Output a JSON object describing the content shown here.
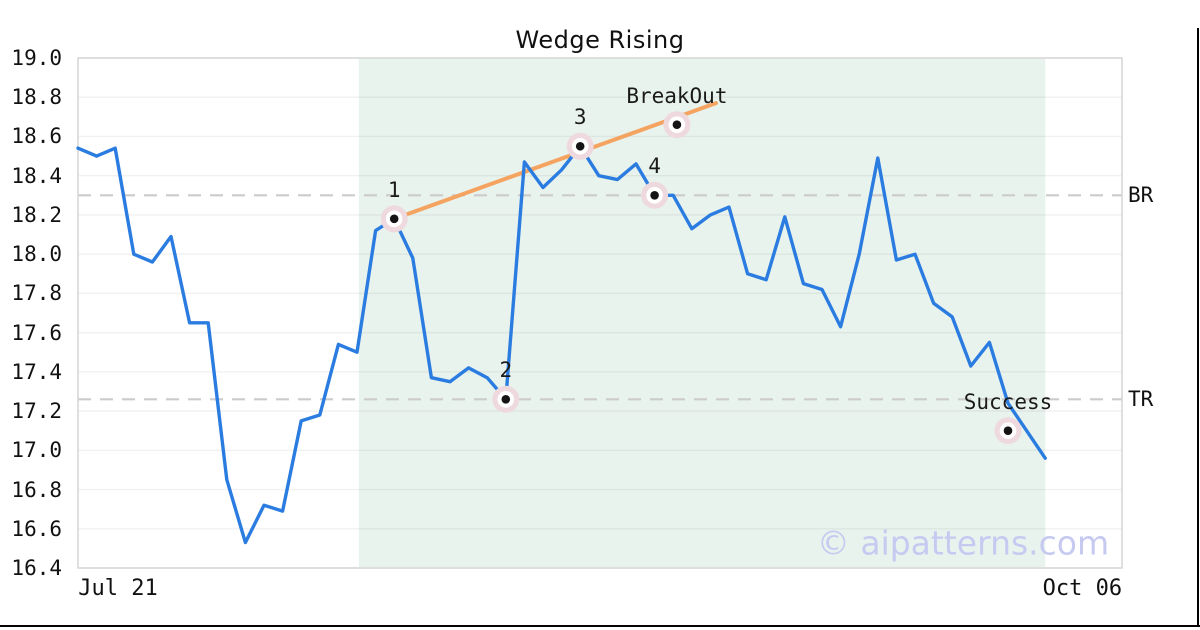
{
  "title": "Wedge Rising",
  "watermark": "© aipatterns.com",
  "colors": {
    "price_line": "#2a7ce0",
    "trend_line": "#f4a460",
    "pattern_shade": "#e9f3ee",
    "marker_halo": "#eed9de",
    "marker_ring": "#ffffff",
    "marker_dot": "#141414",
    "dashed_level": "#cbcbcb",
    "grid": "#ececec",
    "spine": "#d7d7d7",
    "watermark": "#c6caf0",
    "text": "#1a1a1a"
  },
  "chart_data": {
    "type": "line",
    "title": "Wedge Rising",
    "ylim": [
      16.4,
      19.0
    ],
    "yticks": [
      "19.0",
      "18.8",
      "18.6",
      "18.4",
      "18.2",
      "18.0",
      "17.8",
      "17.6",
      "17.4",
      "17.2",
      "17.0",
      "16.8",
      "16.6",
      "16.4"
    ],
    "xticks": [
      {
        "label": "Jul 21",
        "x_index": 2.15
      },
      {
        "label": "Oct 06",
        "x_index": 54.0
      }
    ],
    "series": [
      {
        "name": "price",
        "values": [
          18.54,
          18.5,
          18.54,
          18.0,
          17.96,
          18.09,
          17.65,
          17.65,
          16.85,
          16.53,
          16.72,
          16.69,
          17.15,
          17.18,
          17.54,
          17.5,
          18.12,
          18.18,
          17.98,
          17.37,
          17.35,
          17.42,
          17.37,
          17.26,
          18.47,
          18.34,
          18.43,
          18.55,
          18.4,
          18.38,
          18.46,
          18.3,
          18.3,
          18.13,
          18.2,
          18.24,
          17.9,
          17.87,
          18.19,
          17.85,
          17.82,
          17.63,
          18.0,
          18.49,
          17.97,
          18.0,
          17.75,
          17.68,
          17.43,
          17.55,
          17.24,
          17.1,
          16.96
        ]
      }
    ],
    "levels": [
      {
        "label": "BR",
        "value": 18.3
      },
      {
        "label": "TR",
        "value": 17.26
      }
    ],
    "trendline": {
      "from": {
        "x_index": 17,
        "value": 18.18
      },
      "to": {
        "x_index": 34.3,
        "value": 18.77
      }
    },
    "pattern_region": {
      "start_index": 15.1,
      "end_index": 52.0
    },
    "markers": [
      {
        "label": "1",
        "x_index": 17,
        "value": 18.18
      },
      {
        "label": "2",
        "x_index": 23,
        "value": 17.26
      },
      {
        "label": "3",
        "x_index": 27,
        "value": 18.55
      },
      {
        "label": "4",
        "x_index": 31,
        "value": 18.3
      },
      {
        "label": "BreakOut",
        "x_index": 32.2,
        "value": 18.66
      },
      {
        "label": "Success",
        "x_index": 50.0,
        "value": 17.1
      }
    ]
  }
}
